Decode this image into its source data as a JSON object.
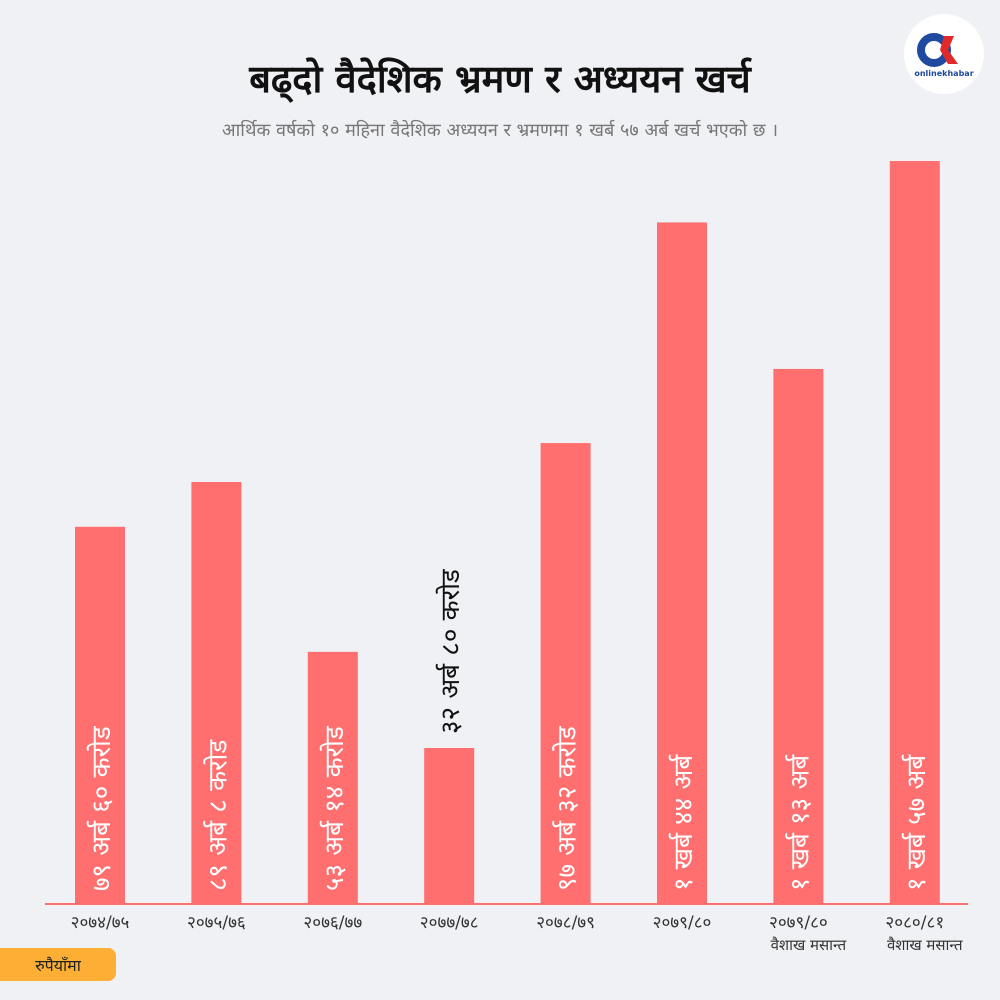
{
  "logo_text": "onlinekhabar",
  "unit_badge": "रुपैयाँमा",
  "colors": {
    "bar": "#ff6f6f",
    "axis": "#ff6f6f",
    "badge": "#fcaf34"
  },
  "chart_data": {
    "type": "bar",
    "title": "बढ्दो  वैदेशिक भ्रमण र अध्ययन खर्च",
    "subtitle": "आर्थिक वर्षको १० महिना वैदेशिक अध्ययन र भ्रमणमा १ खर्ब ५७ अर्ब खर्च भएको छ ।",
    "xlabel": "",
    "ylabel": "रुपैयाँमा",
    "unit": "अर्ब",
    "ylim": [
      0,
      170
    ],
    "grid": false,
    "categories": [
      {
        "year": "२०७४/७५",
        "note": ""
      },
      {
        "year": "२०७५/७६",
        "note": ""
      },
      {
        "year": "२०७६/७७",
        "note": ""
      },
      {
        "year": "२०७७/७८",
        "note": ""
      },
      {
        "year": "२०७८/७९",
        "note": ""
      },
      {
        "year": "२०७९/८०",
        "note": ""
      },
      {
        "year": "२०७९/८०",
        "note": "वैशाख मसान्त"
      },
      {
        "year": "२०८०/८१",
        "note": "वैशाख मसान्त"
      }
    ],
    "values": [
      79.6,
      89.08,
      53.14,
      32.8,
      97.32,
      144,
      113,
      157
    ],
    "data_labels": [
      "७९ अर्ब ६० करोड",
      "८९ अर्ब ८ करोड",
      "५३ अर्ब १४ करोड",
      "३२ अर्ब ८० करोड",
      "९७ अर्ब ३२ करोड",
      "१ खर्ब ४४ अर्ब",
      "१ खर्ब १३ अर्ब",
      "१ खर्ब ५७ अर्ब"
    ]
  }
}
